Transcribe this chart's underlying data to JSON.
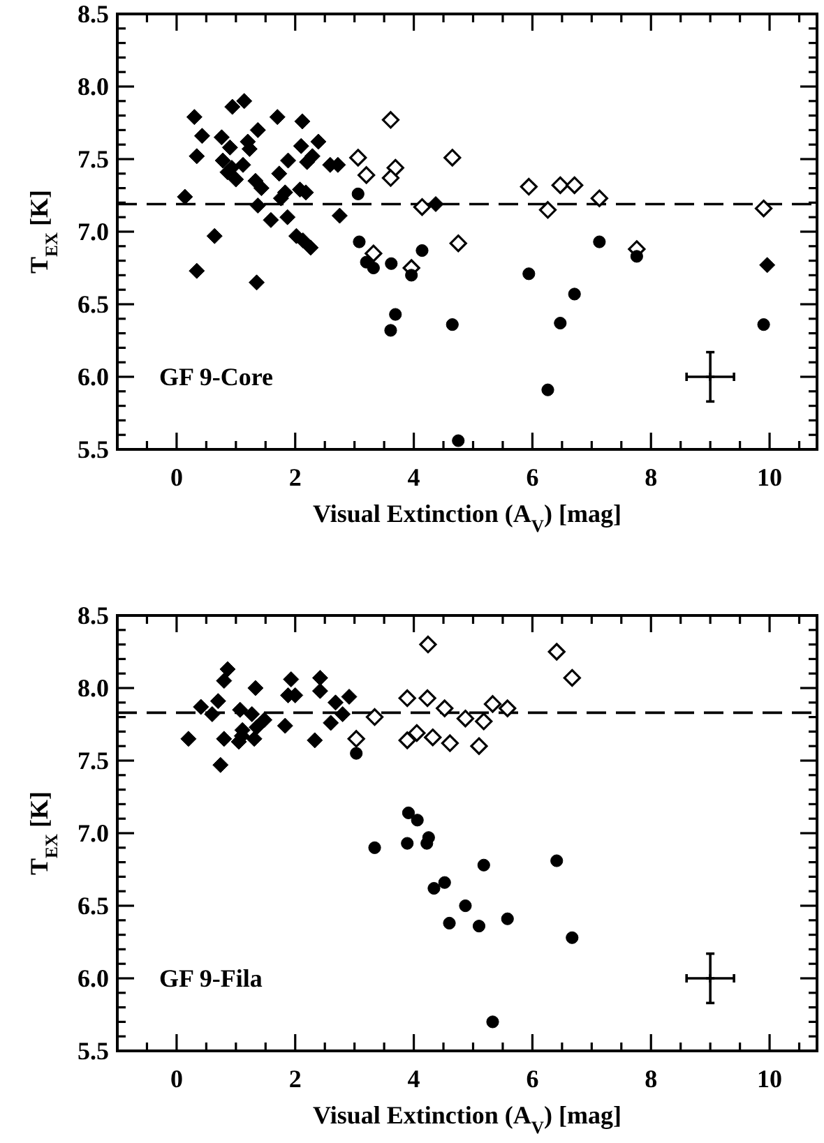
{
  "chart_data": [
    {
      "type": "scatter",
      "xlabel": "Visual Extinction (A$_{V}$) [mag]",
      "ylabel": "T$_{EX}$ [K]",
      "annotations": [
        "GF 9-Core"
      ],
      "xlim": [
        -1,
        10.8
      ],
      "ylim": [
        5.5,
        8.5
      ],
      "xticks": [
        0,
        2,
        4,
        6,
        8,
        10,
        {
          "value": -0.5,
          "label": null
        },
        {
          "value": 0.5,
          "label": null
        },
        {
          "value": 1,
          "label": null
        },
        {
          "value": 1.5,
          "label": null
        },
        {
          "value": 2.5,
          "label": null
        },
        {
          "value": 3,
          "label": null
        },
        {
          "value": 3.5,
          "label": null
        },
        {
          "value": 4.5,
          "label": null
        },
        {
          "value": 5,
          "label": null
        },
        {
          "value": 5.5,
          "label": null
        },
        {
          "value": 6.5,
          "label": null
        },
        {
          "value": 7,
          "label": null
        },
        {
          "value": 7.5,
          "label": null
        },
        {
          "value": 8.5,
          "label": null
        },
        {
          "value": 9,
          "label": null
        },
        {
          "value": 9.5,
          "label": null
        },
        {
          "value": 10.5,
          "label": null
        }
      ],
      "yticks": [
        {
          "value": 5.5,
          "label": "5.5"
        },
        {
          "value": 6,
          "label": "6.0"
        },
        {
          "value": 6.5,
          "label": "6.5"
        },
        {
          "value": 7,
          "label": "7.0"
        },
        {
          "value": 7.5,
          "label": "7.5"
        },
        {
          "value": 8,
          "label": "8.0"
        },
        {
          "value": 8.5,
          "label": "8.5"
        },
        {
          "value": 5.6,
          "label": null
        },
        {
          "value": 5.7,
          "label": null
        },
        {
          "value": 5.8,
          "label": null
        },
        {
          "value": 5.9,
          "label": null
        },
        {
          "value": 6.1,
          "label": null
        },
        {
          "value": 6.2,
          "label": null
        },
        {
          "value": 6.3,
          "label": null
        },
        {
          "value": 6.4,
          "label": null
        },
        {
          "value": 6.6,
          "label": null
        },
        {
          "value": 6.7,
          "label": null
        },
        {
          "value": 6.8,
          "label": null
        },
        {
          "value": 6.9,
          "label": null
        },
        {
          "value": 7.1,
          "label": null
        },
        {
          "value": 7.2,
          "label": null
        },
        {
          "value": 7.3,
          "label": null
        },
        {
          "value": 7.4,
          "label": null
        },
        {
          "value": 7.6,
          "label": null
        },
        {
          "value": 7.7,
          "label": null
        },
        {
          "value": 7.8,
          "label": null
        },
        {
          "value": 7.9,
          "label": null
        },
        {
          "value": 8.1,
          "label": null
        },
        {
          "value": 8.2,
          "label": null
        },
        {
          "value": 8.3,
          "label": null
        },
        {
          "value": 8.4,
          "label": null
        }
      ],
      "ref_lines": [
        {
          "axis": "y",
          "value": 7.19,
          "line_style": "dashed",
          "color": "#000000"
        }
      ],
      "series": [
        {
          "type": "scatter",
          "marker": "diamond",
          "color": "#000000",
          "x": [
            0.14,
            0.3,
            0.34,
            0.34,
            0.43,
            0.64,
            0.76,
            0.78,
            0.9,
            0.86,
            0.94,
            0.93,
            1.0,
            1.14,
            1.12,
            1.2,
            1.23,
            1.37,
            1.33,
            1.43,
            1.37,
            1.35,
            1.59,
            1.7,
            1.73,
            1.76,
            1.83,
            1.87,
            1.88,
            2.02,
            2.12,
            2.1,
            2.08,
            2.18,
            2.2,
            2.29,
            2.13,
            2.26,
            2.39,
            2.59,
            2.72,
            2.75,
            4.37,
            9.96
          ],
          "values": [
            7.24,
            7.79,
            7.52,
            6.73,
            7.66,
            6.97,
            7.65,
            7.49,
            7.58,
            7.41,
            7.86,
            7.44,
            7.36,
            7.9,
            7.46,
            7.62,
            7.57,
            7.7,
            7.35,
            7.3,
            7.18,
            6.65,
            7.08,
            7.79,
            7.4,
            7.23,
            7.27,
            7.1,
            7.49,
            6.97,
            7.76,
            7.59,
            7.29,
            7.27,
            7.48,
            7.52,
            6.94,
            6.89,
            7.62,
            7.46,
            7.46,
            7.11,
            7.19,
            6.77
          ]
        },
        {
          "type": "scatter",
          "marker": "diamond-open",
          "color": "#000000",
          "x": [
            3.06,
            3.2,
            3.61,
            3.69,
            3.61,
            4.14,
            3.32,
            3.96,
            4.65,
            4.75,
            5.94,
            6.26,
            6.47,
            6.71,
            7.13,
            7.76,
            9.9
          ],
          "values": [
            7.51,
            7.39,
            7.77,
            7.44,
            7.37,
            7.17,
            6.85,
            6.75,
            7.51,
            6.92,
            7.31,
            7.15,
            7.32,
            7.32,
            7.23,
            6.88,
            7.16
          ]
        },
        {
          "type": "scatter",
          "marker": "circle",
          "color": "#000000",
          "x": [
            3.06,
            3.08,
            3.2,
            3.32,
            3.62,
            3.96,
            3.69,
            3.61,
            4.14,
            4.65,
            4.75,
            5.94,
            6.26,
            6.47,
            6.71,
            7.13,
            7.76,
            9.9
          ],
          "values": [
            7.26,
            6.93,
            6.79,
            6.75,
            6.78,
            6.7,
            6.43,
            6.32,
            6.87,
            6.36,
            5.56,
            6.71,
            5.91,
            6.37,
            6.57,
            6.93,
            6.83,
            6.36
          ]
        },
        {
          "type": "scatter",
          "marker": "cross",
          "color": "#000000",
          "x": [
            9
          ],
          "values": [
            6.0
          ],
          "errors": [
            0.17
          ],
          "xerrors": [
            0.4
          ]
        }
      ]
    },
    {
      "type": "scatter",
      "xlabel": "Visual Extinction (A$_{V}$) [mag]",
      "ylabel": "T$_{EX}$ [K]",
      "annotations": [
        "GF 9-Fila"
      ],
      "xlim": [
        -1,
        10.8
      ],
      "ylim": [
        5.5,
        8.5
      ],
      "xticks": [
        0,
        2,
        4,
        6,
        8,
        10,
        {
          "value": -0.5,
          "label": null
        },
        {
          "value": 0.5,
          "label": null
        },
        {
          "value": 1,
          "label": null
        },
        {
          "value": 1.5,
          "label": null
        },
        {
          "value": 2.5,
          "label": null
        },
        {
          "value": 3,
          "label": null
        },
        {
          "value": 3.5,
          "label": null
        },
        {
          "value": 4.5,
          "label": null
        },
        {
          "value": 5,
          "label": null
        },
        {
          "value": 5.5,
          "label": null
        },
        {
          "value": 6.5,
          "label": null
        },
        {
          "value": 7,
          "label": null
        },
        {
          "value": 7.5,
          "label": null
        },
        {
          "value": 8.5,
          "label": null
        },
        {
          "value": 9,
          "label": null
        },
        {
          "value": 9.5,
          "label": null
        },
        {
          "value": 10.5,
          "label": null
        }
      ],
      "yticks": [
        {
          "value": 5.5,
          "label": "5.5"
        },
        {
          "value": 6,
          "label": "6.0"
        },
        {
          "value": 6.5,
          "label": "6.5"
        },
        {
          "value": 7,
          "label": "7.0"
        },
        {
          "value": 7.5,
          "label": "7.5"
        },
        {
          "value": 8,
          "label": "8.0"
        },
        {
          "value": 8.5,
          "label": "8.5"
        },
        {
          "value": 5.6,
          "label": null
        },
        {
          "value": 5.7,
          "label": null
        },
        {
          "value": 5.8,
          "label": null
        },
        {
          "value": 5.9,
          "label": null
        },
        {
          "value": 6.1,
          "label": null
        },
        {
          "value": 6.2,
          "label": null
        },
        {
          "value": 6.3,
          "label": null
        },
        {
          "value": 6.4,
          "label": null
        },
        {
          "value": 6.6,
          "label": null
        },
        {
          "value": 6.7,
          "label": null
        },
        {
          "value": 6.8,
          "label": null
        },
        {
          "value": 6.9,
          "label": null
        },
        {
          "value": 7.1,
          "label": null
        },
        {
          "value": 7.2,
          "label": null
        },
        {
          "value": 7.3,
          "label": null
        },
        {
          "value": 7.4,
          "label": null
        },
        {
          "value": 7.6,
          "label": null
        },
        {
          "value": 7.7,
          "label": null
        },
        {
          "value": 7.8,
          "label": null
        },
        {
          "value": 7.9,
          "label": null
        },
        {
          "value": 8.1,
          "label": null
        },
        {
          "value": 8.2,
          "label": null
        },
        {
          "value": 8.3,
          "label": null
        },
        {
          "value": 8.4,
          "label": null
        }
      ],
      "ref_lines": [
        {
          "axis": "y",
          "value": 7.83,
          "line_style": "dashed",
          "color": "#000000"
        }
      ],
      "series": [
        {
          "type": "scatter",
          "marker": "diamond",
          "color": "#000000",
          "x": [
            0.2,
            0.41,
            0.6,
            0.7,
            0.8,
            0.86,
            0.8,
            0.74,
            1.05,
            1.07,
            1.11,
            1.1,
            1.27,
            1.33,
            1.31,
            1.35,
            1.48,
            1.83,
            1.93,
            1.88,
            2.0,
            2.33,
            2.42,
            2.42,
            2.68,
            2.6,
            2.8,
            2.91
          ],
          "values": [
            7.65,
            7.87,
            7.82,
            7.91,
            8.05,
            8.13,
            7.65,
            7.47,
            7.63,
            7.85,
            7.71,
            7.67,
            7.82,
            8.0,
            7.65,
            7.73,
            7.78,
            7.74,
            8.06,
            7.95,
            7.95,
            7.64,
            8.07,
            7.98,
            7.9,
            7.76,
            7.82,
            7.94
          ]
        },
        {
          "type": "scatter",
          "marker": "diamond-open",
          "color": "#000000",
          "x": [
            3.03,
            3.34,
            3.89,
            3.89,
            4.05,
            4.24,
            4.23,
            4.32,
            4.52,
            4.61,
            4.87,
            5.1,
            5.18,
            5.33,
            5.58,
            6.41,
            6.67
          ],
          "values": [
            7.65,
            7.8,
            7.93,
            7.64,
            7.69,
            8.3,
            7.93,
            7.66,
            7.86,
            7.62,
            7.79,
            7.6,
            7.77,
            7.89,
            7.86,
            8.25,
            8.07
          ]
        },
        {
          "type": "scatter",
          "marker": "circle",
          "color": "#000000",
          "x": [
            3.03,
            3.34,
            3.91,
            4.06,
            3.89,
            4.25,
            4.22,
            4.34,
            4.52,
            4.6,
            4.87,
            5.1,
            5.18,
            5.58,
            6.41,
            6.67,
            5.33
          ],
          "values": [
            7.55,
            6.9,
            7.14,
            7.09,
            6.93,
            6.97,
            6.93,
            6.62,
            6.66,
            6.38,
            6.5,
            6.36,
            6.78,
            6.41,
            6.81,
            6.28,
            5.7
          ]
        },
        {
          "type": "scatter",
          "marker": "cross",
          "color": "#000000",
          "x": [
            9
          ],
          "values": [
            6.0
          ],
          "errors": [
            0.17
          ],
          "xerrors": [
            0.4
          ]
        }
      ]
    }
  ]
}
